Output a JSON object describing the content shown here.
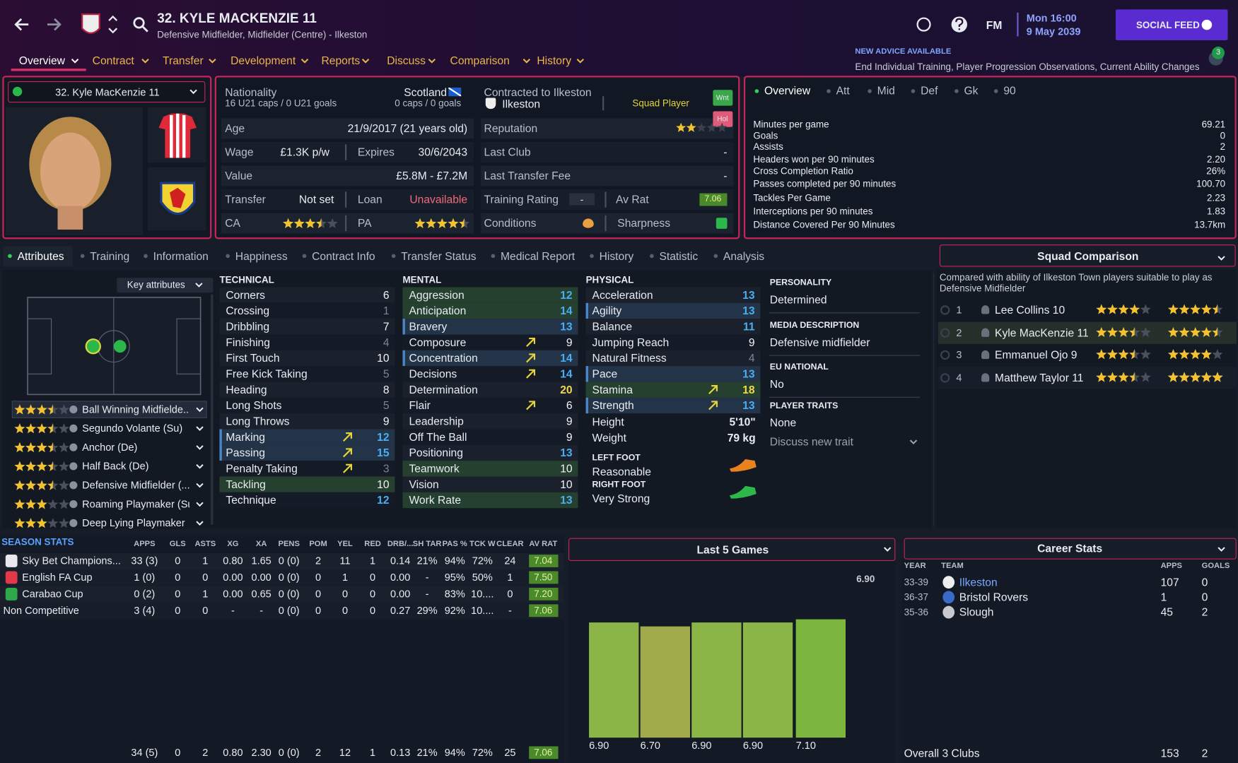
{
  "header": {
    "title": "32. KYLE MACKENZIE 11",
    "subtitle": "Defensive Midfielder, Midfielder (Centre) - Ilkeston",
    "logo": "FM",
    "time": "Mon 16:00",
    "date": "9 May 2039",
    "social": "SOCIAL FEED",
    "advice_title": "NEW ADVICE AVAILABLE",
    "advice_text": "End Individual Training, Player Progression Observations, Current Ability Changes",
    "advice_count": "3"
  },
  "nav": [
    "Overview",
    "Contract",
    "Transfer",
    "Development",
    "Reports",
    "Discuss",
    "Comparison",
    "History"
  ],
  "player_select": "32. Kyle MacKenzie 11",
  "info": {
    "nationality_label": "Nationality",
    "u21": "16 U21 caps / 0 U21 goals",
    "nation": "Scotland",
    "caps": "0 caps / 0 goals",
    "age_label": "Age",
    "age": "21/9/2017 (21 years old)",
    "wage_label": "Wage",
    "wage": "£1.3K p/w",
    "expires_label": "Expires",
    "expires": "30/6/2043",
    "value_label": "Value",
    "value": "£5.8M - £7.2M",
    "transfer_label": "Transfer",
    "transfer": "Not set",
    "loan_label": "Loan",
    "loan": "Unavailable",
    "ca_label": "CA",
    "ca_stars": 3.5,
    "pa_label": "PA",
    "pa_stars": 4.5,
    "contract_label": "Contracted to Ilkeston",
    "club": "Ilkeston",
    "squad_status": "Squad Player",
    "wnt": "Wnt",
    "hol": "Hol",
    "reputation_label": "Reputation",
    "reputation_stars": 2,
    "last_club_label": "Last Club",
    "last_club": "-",
    "fee_label": "Last Transfer Fee",
    "fee": "-",
    "training_label": "Training Rating",
    "training": "-",
    "avrat_label": "Av Rat",
    "avrat": "7.06",
    "conditions_label": "Conditions",
    "sharpness_label": "Sharpness"
  },
  "overview": {
    "tabs": [
      "Overview",
      "Att",
      "Mid",
      "Def",
      "Gk",
      "90"
    ],
    "rows": [
      [
        "Minutes per game",
        "69.21"
      ],
      [
        "Goals",
        "0"
      ],
      [
        "Assists",
        "2"
      ],
      [
        "Headers won per 90 minutes",
        "2.20"
      ],
      [
        "Cross Completion Ratio",
        "26%"
      ],
      [
        "Passes completed per 90 minutes",
        "100.70"
      ],
      [
        "Tackles Per Game",
        "2.23"
      ],
      [
        "Interceptions per 90 minutes",
        "1.83"
      ],
      [
        "Distance Covered Per 90 Minutes",
        "13.7km"
      ]
    ]
  },
  "tabs": [
    "Attributes",
    "Training",
    "Information",
    "Happiness",
    "Contract Info",
    "Transfer Status",
    "Medical Report",
    "History",
    "Statistic",
    "Analysis"
  ],
  "key_attributes": "Key attributes",
  "roles": [
    {
      "name": "Ball Winning Midfielde...",
      "stars": 3.5
    },
    {
      "name": "Segundo Volante (Su)",
      "stars": 3.5
    },
    {
      "name": "Anchor (De)",
      "stars": 3.5
    },
    {
      "name": "Half Back (De)",
      "stars": 3.5
    },
    {
      "name": "Defensive Midfielder (...",
      "stars": 3.5
    },
    {
      "name": "Roaming Playmaker (Su)",
      "stars": 3
    },
    {
      "name": "Deep Lying Playmaker",
      "stars": 3
    }
  ],
  "attributes": {
    "technical": {
      "title": "TECHNICAL",
      "items": [
        {
          "name": "Corners",
          "value": 6
        },
        {
          "name": "Crossing",
          "value": 1
        },
        {
          "name": "Dribbling",
          "value": 7
        },
        {
          "name": "Finishing",
          "value": 4
        },
        {
          "name": "First Touch",
          "value": 10
        },
        {
          "name": "Free Kick Taking",
          "value": 5
        },
        {
          "name": "Heading",
          "value": 8
        },
        {
          "name": "Long Shots",
          "value": 5
        },
        {
          "name": "Long Throws",
          "value": 9
        },
        {
          "name": "Marking",
          "value": 12,
          "arrow": true,
          "highlight": "blue"
        },
        {
          "name": "Passing",
          "value": 15,
          "arrow": true,
          "highlight": "blue"
        },
        {
          "name": "Penalty Taking",
          "value": 3,
          "arrow": true
        },
        {
          "name": "Tackling",
          "value": 10,
          "highlight": "green"
        },
        {
          "name": "Technique",
          "value": 12
        }
      ]
    },
    "mental": {
      "title": "MENTAL",
      "items": [
        {
          "name": "Aggression",
          "value": 12,
          "highlight": "green"
        },
        {
          "name": "Anticipation",
          "value": 14,
          "highlight": "green"
        },
        {
          "name": "Bravery",
          "value": 13,
          "highlight": "blue"
        },
        {
          "name": "Composure",
          "value": 9,
          "arrow": true
        },
        {
          "name": "Concentration",
          "value": 14,
          "arrow": true,
          "highlight": "blue"
        },
        {
          "name": "Decisions",
          "value": 14,
          "arrow": true
        },
        {
          "name": "Determination",
          "value": 20
        },
        {
          "name": "Flair",
          "value": 6,
          "arrow": true
        },
        {
          "name": "Leadership",
          "value": 9
        },
        {
          "name": "Off The Ball",
          "value": 9
        },
        {
          "name": "Positioning",
          "value": 13
        },
        {
          "name": "Teamwork",
          "value": 10,
          "highlight": "green"
        },
        {
          "name": "Vision",
          "value": 10
        },
        {
          "name": "Work Rate",
          "value": 13,
          "highlight": "green"
        }
      ]
    },
    "physical": {
      "title": "PHYSICAL",
      "items": [
        {
          "name": "Acceleration",
          "value": 13
        },
        {
          "name": "Agility",
          "value": 13,
          "highlight": "blue"
        },
        {
          "name": "Balance",
          "value": 11
        },
        {
          "name": "Jumping Reach",
          "value": 9
        },
        {
          "name": "Natural Fitness",
          "value": 4
        },
        {
          "name": "Pace",
          "value": 13,
          "highlight": "blue"
        },
        {
          "name": "Stamina",
          "value": 18,
          "arrow": true,
          "highlight": "green"
        },
        {
          "name": "Strength",
          "value": 13,
          "arrow": true,
          "highlight": "blue"
        }
      ],
      "height_label": "Height",
      "height": "5'10\"",
      "weight_label": "Weight",
      "weight": "79 kg",
      "left_foot_label": "LEFT FOOT",
      "left_foot": "Reasonable",
      "right_foot_label": "RIGHT FOOT",
      "right_foot": "Very Strong"
    }
  },
  "profile": {
    "items": [
      {
        "label": "PERSONALITY",
        "value": "Determined"
      },
      {
        "label": "MEDIA DESCRIPTION",
        "value": "Defensive midfielder"
      },
      {
        "label": "EU NATIONAL",
        "value": "No"
      },
      {
        "label": "PLAYER TRAITS",
        "value": "None"
      }
    ],
    "discuss_trait": "Discuss new trait"
  },
  "squad_comparison": {
    "title": "Squad Comparison",
    "description": "Compared with ability of Ilkeston Town players suitable to play as Defensive Midfielder",
    "rows": [
      {
        "rank": "1",
        "name": "Lee Collins 10",
        "ca": 4,
        "pa": 4.5
      },
      {
        "rank": "2",
        "name": "Kyle MacKenzie 11",
        "ca": 3.5,
        "pa": 4.5
      },
      {
        "rank": "3",
        "name": "Emmanuel Ojo 9",
        "ca": 3.5,
        "pa": 4
      },
      {
        "rank": "4",
        "name": "Matthew Taylor 11",
        "ca": 3.5,
        "pa": 5
      }
    ]
  },
  "season_stats": {
    "title": "SEASON STATS",
    "columns": [
      "APPS",
      "GLS",
      "ASTS",
      "XG",
      "XA",
      "PENS",
      "POM",
      "YEL",
      "RED",
      "DRB/...",
      "SH TAR",
      "PAS %",
      "TCK W",
      "CLEAR",
      "AV RAT"
    ],
    "rows": [
      [
        "Sky Bet Champions...",
        "33 (3)",
        "0",
        "1",
        "0.80",
        "1.65",
        "0 (0)",
        "2",
        "11",
        "1",
        "0.14",
        "21%",
        "94%",
        "72%",
        "24",
        "7.04"
      ],
      [
        "English FA Cup",
        "1 (0)",
        "0",
        "0",
        "0.00",
        "0.00",
        "0 (0)",
        "0",
        "1",
        "0",
        "0.00",
        "-",
        "95%",
        "50%",
        "1",
        "7.50"
      ],
      [
        "Carabao Cup",
        "0 (2)",
        "0",
        "1",
        "0.00",
        "0.65",
        "0 (0)",
        "0",
        "0",
        "0",
        "0.00",
        "-",
        "83%",
        "10....",
        "0",
        "7.20"
      ],
      [
        "Non Competitive",
        "3 (4)",
        "0",
        "0",
        "-",
        "-",
        "0 (0)",
        "0",
        "0",
        "0",
        "0.27",
        "29%",
        "92%",
        "10....",
        "-",
        "7.06"
      ]
    ],
    "total": [
      "34 (5)",
      "0",
      "2",
      "0.80",
      "2.30",
      "0 (0)",
      "2",
      "12",
      "1",
      "0.13",
      "21%",
      "94%",
      "72%",
      "25",
      "7.06"
    ]
  },
  "last5": {
    "title": "Last 5 Games",
    "type": "bar",
    "values": [
      6.9,
      6.7,
      6.9,
      6.9,
      7.1
    ],
    "value_labels": [
      "6.90",
      "6.70",
      "6.90",
      "6.90",
      "7.10"
    ],
    "colors": [
      "#8cb548",
      "#a2ab4c",
      "#8cb548",
      "#8cb548",
      "#7db63f"
    ],
    "average": {
      "value": 6.9,
      "label": "6.90"
    }
  },
  "career": {
    "title": "Career Stats",
    "columns": [
      "YEAR",
      "TEAM",
      "APPS",
      "GOALS"
    ],
    "rows": [
      [
        "33-39",
        "Ilkeston",
        "107",
        "0"
      ],
      [
        "36-37",
        "Bristol Rovers",
        "1",
        "0"
      ],
      [
        "35-36",
        "Slough",
        "45",
        "2"
      ]
    ],
    "total": [
      "Overall 3 Clubs",
      "153",
      "2"
    ]
  }
}
